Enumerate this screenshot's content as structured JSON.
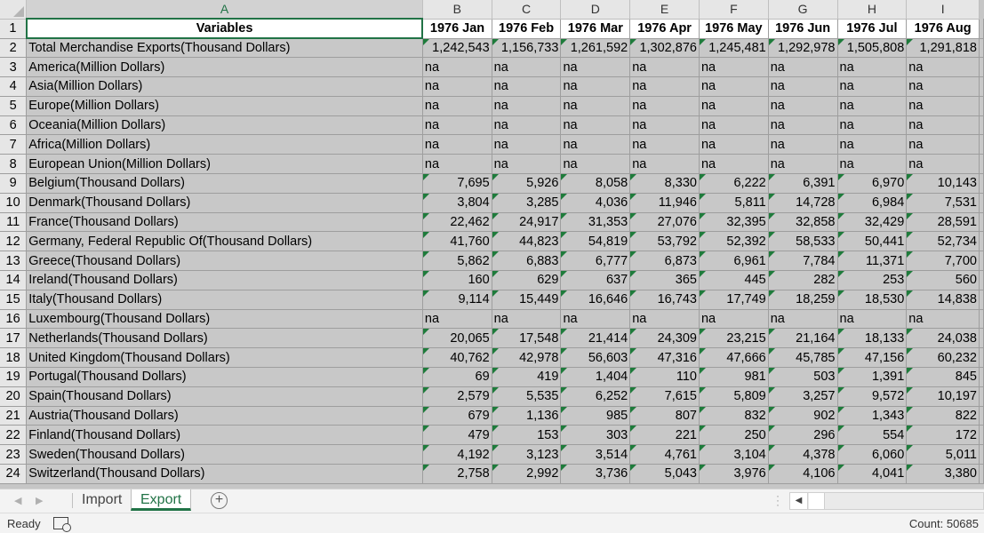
{
  "columns": [
    "A",
    "B",
    "C",
    "D",
    "E",
    "F",
    "G",
    "H",
    "I"
  ],
  "header_row": [
    "Variables",
    "1976 Jan",
    "1976 Feb",
    "1976 Mar",
    "1976 Apr",
    "1976 May",
    "1976 Jun",
    "1976 Jul",
    "1976 Aug"
  ],
  "rows": [
    {
      "n": "2",
      "label": "Total Merchandise Exports(Thousand Dollars)",
      "indent": false,
      "vals": [
        "1,242,543",
        "1,156,733",
        "1,261,592",
        "1,302,876",
        "1,245,481",
        "1,292,978",
        "1,505,808",
        "1,291,818"
      ]
    },
    {
      "n": "3",
      "label": "America(Million Dollars)",
      "indent": true,
      "vals": [
        "na",
        "na",
        "na",
        "na",
        "na",
        "na",
        "na",
        "na"
      ]
    },
    {
      "n": "4",
      "label": "Asia(Million Dollars)",
      "indent": true,
      "vals": [
        "na",
        "na",
        "na",
        "na",
        "na",
        "na",
        "na",
        "na"
      ]
    },
    {
      "n": "5",
      "label": "Europe(Million Dollars)",
      "indent": true,
      "vals": [
        "na",
        "na",
        "na",
        "na",
        "na",
        "na",
        "na",
        "na"
      ]
    },
    {
      "n": "6",
      "label": "Oceania(Million Dollars)",
      "indent": true,
      "vals": [
        "na",
        "na",
        "na",
        "na",
        "na",
        "na",
        "na",
        "na"
      ]
    },
    {
      "n": "7",
      "label": "Africa(Million Dollars)",
      "indent": true,
      "vals": [
        "na",
        "na",
        "na",
        "na",
        "na",
        "na",
        "na",
        "na"
      ]
    },
    {
      "n": "8",
      "label": "European Union(Million Dollars)",
      "indent": true,
      "vals": [
        "na",
        "na",
        "na",
        "na",
        "na",
        "na",
        "na",
        "na"
      ]
    },
    {
      "n": "9",
      "label": "Belgium(Thousand Dollars)",
      "indent": true,
      "vals": [
        "7,695",
        "5,926",
        "8,058",
        "8,330",
        "6,222",
        "6,391",
        "6,970",
        "10,143"
      ]
    },
    {
      "n": "10",
      "label": "Denmark(Thousand Dollars)",
      "indent": true,
      "vals": [
        "3,804",
        "3,285",
        "4,036",
        "11,946",
        "5,811",
        "14,728",
        "6,984",
        "7,531"
      ]
    },
    {
      "n": "11",
      "label": "France(Thousand Dollars)",
      "indent": true,
      "vals": [
        "22,462",
        "24,917",
        "31,353",
        "27,076",
        "32,395",
        "32,858",
        "32,429",
        "28,591"
      ]
    },
    {
      "n": "12",
      "label": "Germany, Federal Republic Of(Thousand Dollars)",
      "indent": true,
      "vals": [
        "41,760",
        "44,823",
        "54,819",
        "53,792",
        "52,392",
        "58,533",
        "50,441",
        "52,734"
      ]
    },
    {
      "n": "13",
      "label": "Greece(Thousand Dollars)",
      "indent": true,
      "vals": [
        "5,862",
        "6,883",
        "6,777",
        "6,873",
        "6,961",
        "7,784",
        "11,371",
        "7,700"
      ]
    },
    {
      "n": "14",
      "label": "Ireland(Thousand Dollars)",
      "indent": true,
      "vals": [
        "160",
        "629",
        "637",
        "365",
        "445",
        "282",
        "253",
        "560"
      ]
    },
    {
      "n": "15",
      "label": "Italy(Thousand Dollars)",
      "indent": true,
      "vals": [
        "9,114",
        "15,449",
        "16,646",
        "16,743",
        "17,749",
        "18,259",
        "18,530",
        "14,838"
      ]
    },
    {
      "n": "16",
      "label": "Luxembourg(Thousand Dollars)",
      "indent": true,
      "vals": [
        "na",
        "na",
        "na",
        "na",
        "na",
        "na",
        "na",
        "na"
      ]
    },
    {
      "n": "17",
      "label": "Netherlands(Thousand Dollars)",
      "indent": true,
      "vals": [
        "20,065",
        "17,548",
        "21,414",
        "24,309",
        "23,215",
        "21,164",
        "18,133",
        "24,038"
      ]
    },
    {
      "n": "18",
      "label": "United Kingdom(Thousand Dollars)",
      "indent": true,
      "vals": [
        "40,762",
        "42,978",
        "56,603",
        "47,316",
        "47,666",
        "45,785",
        "47,156",
        "60,232"
      ]
    },
    {
      "n": "19",
      "label": "Portugal(Thousand Dollars)",
      "indent": true,
      "vals": [
        "69",
        "419",
        "1,404",
        "110",
        "981",
        "503",
        "1,391",
        "845"
      ]
    },
    {
      "n": "20",
      "label": "Spain(Thousand Dollars)",
      "indent": true,
      "vals": [
        "2,579",
        "5,535",
        "6,252",
        "7,615",
        "5,809",
        "3,257",
        "9,572",
        "10,197"
      ]
    },
    {
      "n": "21",
      "label": "Austria(Thousand Dollars)",
      "indent": true,
      "vals": [
        "679",
        "1,136",
        "985",
        "807",
        "832",
        "902",
        "1,343",
        "822"
      ]
    },
    {
      "n": "22",
      "label": "Finland(Thousand Dollars)",
      "indent": true,
      "vals": [
        "479",
        "153",
        "303",
        "221",
        "250",
        "296",
        "554",
        "172"
      ]
    },
    {
      "n": "23",
      "label": "Sweden(Thousand Dollars)",
      "indent": true,
      "vals": [
        "4,192",
        "3,123",
        "3,514",
        "4,761",
        "3,104",
        "4,378",
        "6,060",
        "5,011"
      ]
    },
    {
      "n": "24",
      "label": "Switzerland(Thousand Dollars)",
      "indent": true,
      "vals": [
        "2,758",
        "2,992",
        "3,736",
        "5,043",
        "3,976",
        "4,106",
        "4,041",
        "3,380"
      ]
    }
  ],
  "sheet_tabs": [
    {
      "label": "Import",
      "active": false
    },
    {
      "label": "Export",
      "active": true
    }
  ],
  "add_sheet_glyph": "+",
  "status": {
    "ready": "Ready",
    "count": "Count: 50685"
  },
  "icons": {
    "add_sheet": "plus-circle-icon",
    "macro": "macro-record-icon",
    "scroll_left": "triangle-left-icon"
  },
  "colors": {
    "accent": "#217346",
    "cell_fill": "#c8c8c8"
  }
}
